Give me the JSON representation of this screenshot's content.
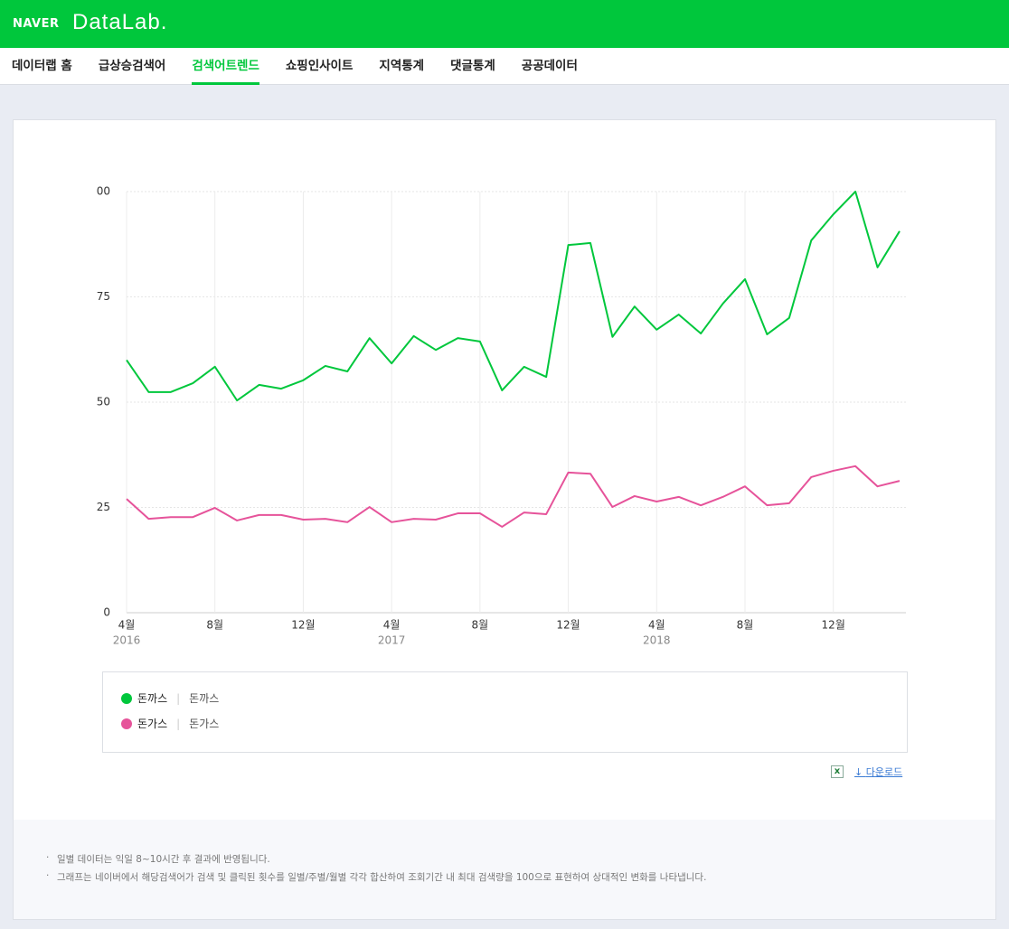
{
  "header": {
    "brand": "NAVER",
    "product": "DataLab."
  },
  "nav": {
    "items": [
      "데이터랩 홈",
      "급상승검색어",
      "검색어트렌드",
      "쇼핑인사이트",
      "지역통계",
      "댓글통계",
      "공공데이터"
    ],
    "active": 2
  },
  "chart_data": {
    "type": "line",
    "categories": [
      "4월",
      null,
      null,
      null,
      "8월",
      null,
      null,
      null,
      "12월",
      null,
      null,
      null,
      "4월",
      null,
      null,
      null,
      "8월",
      null,
      null,
      null,
      "12월",
      null,
      null,
      null,
      "4월",
      null,
      null,
      null,
      "8월",
      null,
      null,
      null,
      "12월",
      null,
      null,
      null
    ],
    "years": [
      "2016",
      null,
      null,
      null,
      null,
      null,
      null,
      null,
      null,
      null,
      null,
      null,
      "2017",
      null,
      null,
      null,
      null,
      null,
      null,
      null,
      null,
      null,
      null,
      null,
      "2018",
      null,
      null,
      null,
      null,
      null,
      null,
      null,
      null,
      null,
      null,
      null
    ],
    "ylim": [
      0,
      100
    ],
    "yticks": [
      0,
      25,
      50,
      75,
      {
        "value": 100,
        "label": "00"
      }
    ],
    "grid": true,
    "series": [
      {
        "name": "돈까스",
        "keyword": "돈까스",
        "color": "#00c73c",
        "values": [
          60,
          52.4,
          52.4,
          54.5,
          58.4,
          50.4,
          54.1,
          53.2,
          55.2,
          58.6,
          57.3,
          65.2,
          59.2,
          65.7,
          62.4,
          65.2,
          64.4,
          52.8,
          58.4,
          56,
          87.3,
          87.8,
          65.5,
          72.7,
          67.2,
          70.8,
          66.3,
          73.4,
          79.2,
          66.1,
          70,
          88.4,
          94.6,
          100,
          82,
          90.6
        ]
      },
      {
        "name": "돈가스",
        "keyword": "돈가스",
        "color": "#e6539a",
        "values": [
          27,
          22.3,
          22.7,
          22.7,
          24.9,
          21.9,
          23.2,
          23.2,
          22.1,
          22.3,
          21.5,
          25.1,
          21.5,
          22.3,
          22.1,
          23.6,
          23.6,
          20.4,
          23.8,
          23.4,
          33.3,
          33,
          25.1,
          27.7,
          26.4,
          27.5,
          25.5,
          27.5,
          30,
          25.5,
          26,
          32.2,
          33.7,
          34.8,
          30,
          31.3
        ]
      }
    ]
  },
  "download": "다운로드",
  "notes": [
    "일별 데이터는 익일 8~10시간 후 결과에 반영됩니다.",
    "그래프는 네이버에서 해당검색어가 검색 및 클릭된 횟수를 일별/주별/월별 각각 합산하여 조회기간 내 최대 검색량을 100으로 표현하여 상대적인 변화를 나타냅니다."
  ]
}
